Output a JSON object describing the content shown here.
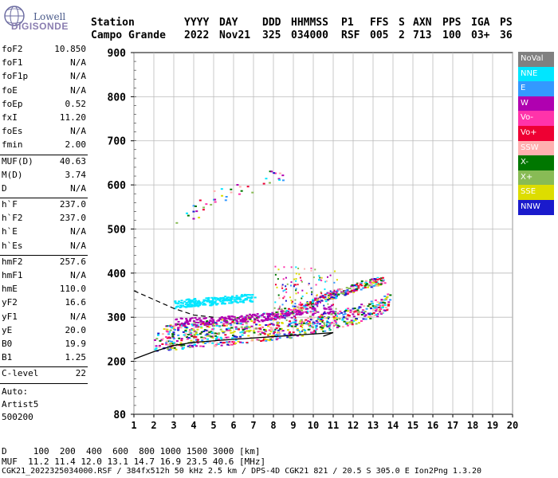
{
  "logo": {
    "line1": "Lowell",
    "line2": "DIGISONDE"
  },
  "header": {
    "labels": [
      "Station",
      "YYYY",
      "DAY",
      "DDD",
      "HHMMSS",
      "P1",
      "FFS",
      "S",
      "AXN",
      "PPS",
      "IGA",
      "PS"
    ],
    "values": [
      "Campo Grande",
      "2022",
      "Nov21",
      "325",
      "034000",
      "RSF",
      "005",
      "2",
      "713",
      "100",
      "03+",
      "36"
    ]
  },
  "params_group1": [
    {
      "k": "foF2",
      "v": "10.850"
    },
    {
      "k": "foF1",
      "v": "N/A"
    },
    {
      "k": "foF1p",
      "v": "N/A"
    },
    {
      "k": "foE",
      "v": "N/A"
    },
    {
      "k": "foEp",
      "v": "0.52"
    },
    {
      "k": "fxI",
      "v": "11.20"
    },
    {
      "k": "foEs",
      "v": "N/A"
    },
    {
      "k": "fmin",
      "v": "2.00"
    }
  ],
  "params_group2": [
    {
      "k": "MUF(D)",
      "v": "40.63"
    },
    {
      "k": "M(D)",
      "v": "3.74"
    },
    {
      "k": "D",
      "v": "N/A"
    }
  ],
  "params_group3": [
    {
      "k": "h`F",
      "v": "237.0"
    },
    {
      "k": "h`F2",
      "v": "237.0"
    },
    {
      "k": "h`E",
      "v": "N/A"
    },
    {
      "k": "h`Es",
      "v": "N/A"
    }
  ],
  "params_group4": [
    {
      "k": "hmF2",
      "v": "257.6"
    },
    {
      "k": "hmF1",
      "v": "N/A"
    },
    {
      "k": "hmE",
      "v": "110.0"
    },
    {
      "k": "yF2",
      "v": "16.6"
    },
    {
      "k": "yF1",
      "v": "N/A"
    },
    {
      "k": "yE",
      "v": "20.0"
    },
    {
      "k": "B0",
      "v": "19.9"
    },
    {
      "k": "B1",
      "v": "1.25"
    }
  ],
  "params_group5": [
    {
      "k": "C-level",
      "v": "22"
    }
  ],
  "auto": {
    "line1": "Auto:",
    "line2": "Artist5",
    "line3": "500200"
  },
  "legend": [
    {
      "name": "NoVal",
      "color": "#808080"
    },
    {
      "name": "NNE",
      "color": "#00e6ff"
    },
    {
      "name": "E",
      "color": "#3399ff"
    },
    {
      "name": "W",
      "color": "#b000b0"
    },
    {
      "name": "Vo-",
      "color": "#ff33aa"
    },
    {
      "name": "Vo+",
      "color": "#ee0033"
    },
    {
      "name": "SSW",
      "color": "#ffb0b0"
    },
    {
      "name": "X-",
      "color": "#007700"
    },
    {
      "name": "X+",
      "color": "#88bb55"
    },
    {
      "name": "SSE",
      "color": "#dddd00"
    },
    {
      "name": "NNW",
      "color": "#1a1acc"
    }
  ],
  "footer": {
    "line1": "D     100  200  400  600  800 1000 1500 3000 [km]",
    "line2": "MUF  11.2 11.4 12.0 13.1 14.7 16.9 23.5 40.6 [MHz]",
    "line3": "CGK21_2022325034000.RSF / 384fx512h 50 kHz 2.5 km / DPS-4D CGK21 821 / 20.5 S 305.0 E Ion2Png 1.3.20"
  },
  "chart_data": {
    "type": "scatter",
    "xlabel": "",
    "ylabel": "",
    "xlim": [
      1,
      20
    ],
    "ylim": [
      80,
      900
    ],
    "x_ticks": [
      1,
      2,
      3,
      4,
      5,
      6,
      7,
      8,
      9,
      10,
      11,
      12,
      13,
      14,
      15,
      16,
      17,
      18,
      19,
      20
    ],
    "y_ticks": [
      80,
      200,
      300,
      400,
      500,
      600,
      700,
      800,
      900
    ],
    "grid": true,
    "legend_position": "right",
    "series": [
      {
        "name": "trace-dense",
        "points": [
          [
            2.0,
            245
          ],
          [
            3.0,
            248
          ],
          [
            4.0,
            252
          ],
          [
            5.0,
            256
          ],
          [
            6.0,
            260
          ],
          [
            7.0,
            265
          ],
          [
            8.0,
            270
          ],
          [
            9.0,
            275
          ],
          [
            10.0,
            285
          ],
          [
            11.0,
            295
          ],
          [
            12.0,
            305
          ],
          [
            13.0,
            320
          ],
          [
            13.8,
            340
          ]
        ]
      },
      {
        "name": "trace-upper",
        "points": [
          [
            2.5,
            275
          ],
          [
            4,
            282
          ],
          [
            6,
            292
          ],
          [
            8,
            305
          ],
          [
            9.5,
            325
          ],
          [
            10.5,
            345
          ],
          [
            11.5,
            360
          ],
          [
            12.5,
            375
          ],
          [
            13.5,
            385
          ]
        ]
      },
      {
        "name": "trace-w",
        "points": [
          [
            3,
            330
          ],
          [
            4,
            335
          ],
          [
            5,
            338
          ],
          [
            6,
            342
          ],
          [
            7,
            346
          ]
        ]
      },
      {
        "name": "trace-nne",
        "points": [
          [
            3,
            290
          ],
          [
            5,
            293
          ],
          [
            7,
            300
          ],
          [
            9,
            310
          ],
          [
            11,
            320
          ]
        ]
      },
      {
        "name": "high-scatter",
        "points": [
          [
            3,
            520
          ],
          [
            4,
            540
          ],
          [
            4.5,
            560
          ],
          [
            5,
            580
          ],
          [
            6,
            590
          ],
          [
            7,
            600
          ],
          [
            8,
            620
          ],
          [
            8.5,
            630
          ]
        ]
      }
    ],
    "profile_solid": [
      [
        1,
        205
      ],
      [
        2,
        222
      ],
      [
        3,
        236
      ],
      [
        4,
        243
      ],
      [
        6,
        250
      ],
      [
        8,
        256
      ],
      [
        10,
        262
      ],
      [
        11,
        265
      ],
      [
        10.5,
        257
      ]
    ],
    "profile_dashed": [
      [
        1,
        360
      ],
      [
        2,
        340
      ],
      [
        3,
        320
      ],
      [
        4,
        305
      ],
      [
        5,
        300
      ]
    ]
  }
}
